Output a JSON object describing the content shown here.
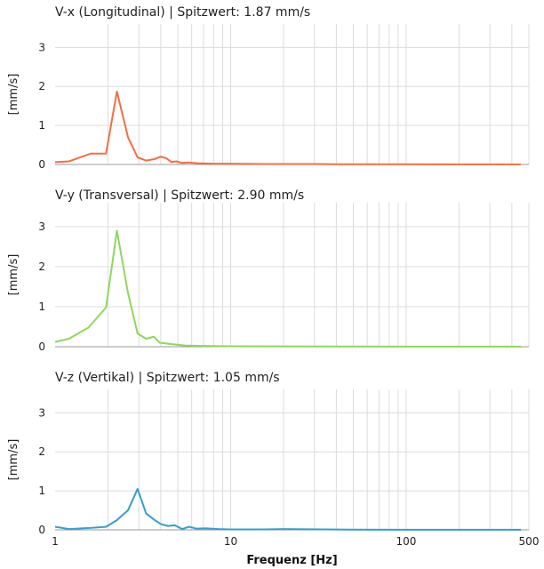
{
  "chart_data": {
    "type": "line",
    "x_scale": "log",
    "xlim": [
      1,
      500
    ],
    "x_ticks": [
      1,
      10,
      100,
      500
    ],
    "xlabel": "Frequenz [Hz]",
    "grid": true,
    "panels": [
      {
        "title": "V-x (Longitudinal) | Spitzwert: 1.87 mm/s",
        "ylabel": "[mm/s]",
        "ylim": [
          0,
          3.6
        ],
        "y_ticks": [
          0,
          1,
          2,
          3
        ],
        "color": "#f46d43",
        "x": [
          1,
          1.2,
          1.6,
          1.95,
          2.25,
          2.6,
          2.95,
          3.3,
          3.7,
          4.0,
          4.3,
          4.6,
          4.9,
          5.3,
          5.8,
          6.5,
          8,
          10,
          15,
          20,
          30,
          50,
          100,
          200,
          450
        ],
        "y": [
          0.06,
          0.08,
          0.28,
          0.28,
          1.87,
          0.7,
          0.18,
          0.1,
          0.14,
          0.2,
          0.16,
          0.06,
          0.08,
          0.04,
          0.05,
          0.03,
          0.02,
          0.02,
          0.01,
          0.01,
          0.01,
          0.005,
          0.005,
          0.003,
          0.002
        ]
      },
      {
        "title": "V-y (Transversal) | Spitzwert: 2.90 mm/s",
        "ylabel": "[mm/s]",
        "ylim": [
          0,
          3.6
        ],
        "y_ticks": [
          0,
          1,
          2,
          3
        ],
        "color": "#8fd65c",
        "x": [
          1,
          1.2,
          1.55,
          1.95,
          2.25,
          2.6,
          2.95,
          3.3,
          3.65,
          3.95,
          4.5,
          5.5,
          7,
          10,
          20,
          50,
          100,
          200,
          450
        ],
        "y": [
          0.12,
          0.2,
          0.48,
          0.98,
          2.9,
          1.35,
          0.33,
          0.2,
          0.25,
          0.1,
          0.07,
          0.03,
          0.02,
          0.01,
          0.008,
          0.005,
          0.003,
          0.002,
          0.002
        ]
      },
      {
        "title": "V-z (Vertikal) | Spitzwert: 1.05 mm/s",
        "ylabel": "[mm/s]",
        "ylim": [
          0,
          3.6
        ],
        "y_ticks": [
          0,
          1,
          2,
          3
        ],
        "color": "#3a9bcb",
        "x": [
          1,
          1.2,
          1.6,
          1.95,
          2.25,
          2.6,
          2.95,
          3.3,
          3.7,
          4.0,
          4.4,
          4.8,
          5.3,
          5.8,
          6.4,
          7.2,
          8.5,
          10,
          15,
          20,
          50,
          100,
          200,
          450
        ],
        "y": [
          0.08,
          0.02,
          0.05,
          0.08,
          0.25,
          0.5,
          1.05,
          0.42,
          0.25,
          0.15,
          0.1,
          0.12,
          0.02,
          0.08,
          0.03,
          0.04,
          0.02,
          0.01,
          0.01,
          0.02,
          0.005,
          0.003,
          0.002,
          0.002
        ]
      }
    ]
  }
}
